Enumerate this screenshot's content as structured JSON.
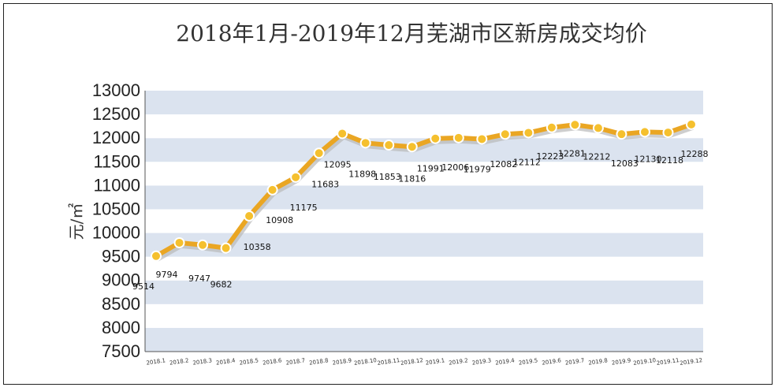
{
  "chart_data": {
    "type": "line",
    "title": "2018年1月-2019年12月芜湖市区新房成交均价",
    "ylabel": "元/㎡",
    "xlabel": "",
    "ylim": [
      7500,
      13000
    ],
    "yticks": [
      7500,
      8000,
      8500,
      9000,
      9500,
      10000,
      10500,
      11000,
      11500,
      12000,
      12500,
      13000
    ],
    "categories": [
      "2018.1",
      "2018.2",
      "2018.3",
      "2018.4",
      "2018.5",
      "2018.6",
      "2018.7",
      "2018.8",
      "2018.9",
      "2018.10",
      "2018.11",
      "2018.12",
      "2019.1",
      "2019.2",
      "2019.3",
      "2019.4",
      "2019.5",
      "2019.6",
      "2019.7",
      "2019.8",
      "2019.9",
      "2019.10",
      "2019.11",
      "2019.12"
    ],
    "values": [
      9514,
      9794,
      9747,
      9682,
      10358,
      10908,
      11175,
      11683,
      12095,
      11898,
      11853,
      11816,
      11991,
      12006,
      11979,
      12082,
      12112,
      12223,
      12281,
      12212,
      12083,
      12130,
      12118,
      12288
    ],
    "band_colors": [
      "#dbe3ef",
      "#ffffff"
    ],
    "line_color": "#eaa623",
    "marker_color": "#f5c02e",
    "grid": false,
    "legend": "none"
  }
}
